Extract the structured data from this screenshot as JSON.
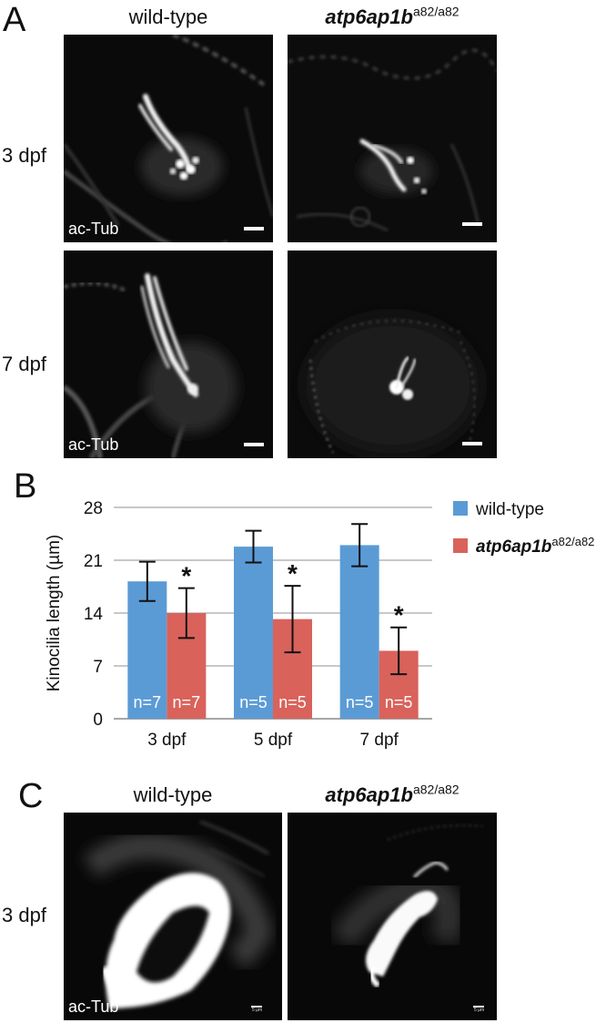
{
  "panel_a": {
    "letter": "A",
    "col_wt": "wild-type",
    "col_mut_gene": "atp6ap1b",
    "col_mut_allele": "a82/a82",
    "row1": "3 dpf",
    "row2": "7 dpf",
    "stain": "ac-Tub"
  },
  "panel_b": {
    "letter": "B"
  },
  "panel_c": {
    "letter": "C",
    "col_wt": "wild-type",
    "col_mut_gene": "atp6ap1b",
    "col_mut_allele": "a82/a82",
    "row1": "3 dpf",
    "stain": "ac-Tub",
    "scale_wt": "5 µm",
    "scale_mut": "5 µm"
  },
  "colors": {
    "wild_type": "#5b9bd5",
    "mutant": "#d9625b"
  },
  "chart_data": {
    "type": "bar",
    "categories": [
      "3 dpf",
      "5 dpf",
      "7 dpf"
    ],
    "ylabel": "Kinocilia length (µm)",
    "ylim": [
      0,
      28
    ],
    "yticks": [
      "0",
      "7",
      "14",
      "21",
      "28"
    ],
    "grid": true,
    "legend_position": "right",
    "series": [
      {
        "name": "wild-type",
        "values": [
          18.2,
          22.8,
          23.0
        ],
        "errors": [
          2.6,
          2.1,
          2.8
        ],
        "n_labels": [
          "n=7",
          "n=5",
          "n=5"
        ],
        "significance": [
          "",
          "",
          ""
        ]
      },
      {
        "name": "atp6ap1b",
        "allele": "a82/a82",
        "values": [
          14.0,
          13.2,
          9.0
        ],
        "errors": [
          3.3,
          4.4,
          3.1
        ],
        "n_labels": [
          "n=7",
          "n=5",
          "n=5"
        ],
        "significance": [
          "*",
          "*",
          "*"
        ]
      }
    ]
  }
}
